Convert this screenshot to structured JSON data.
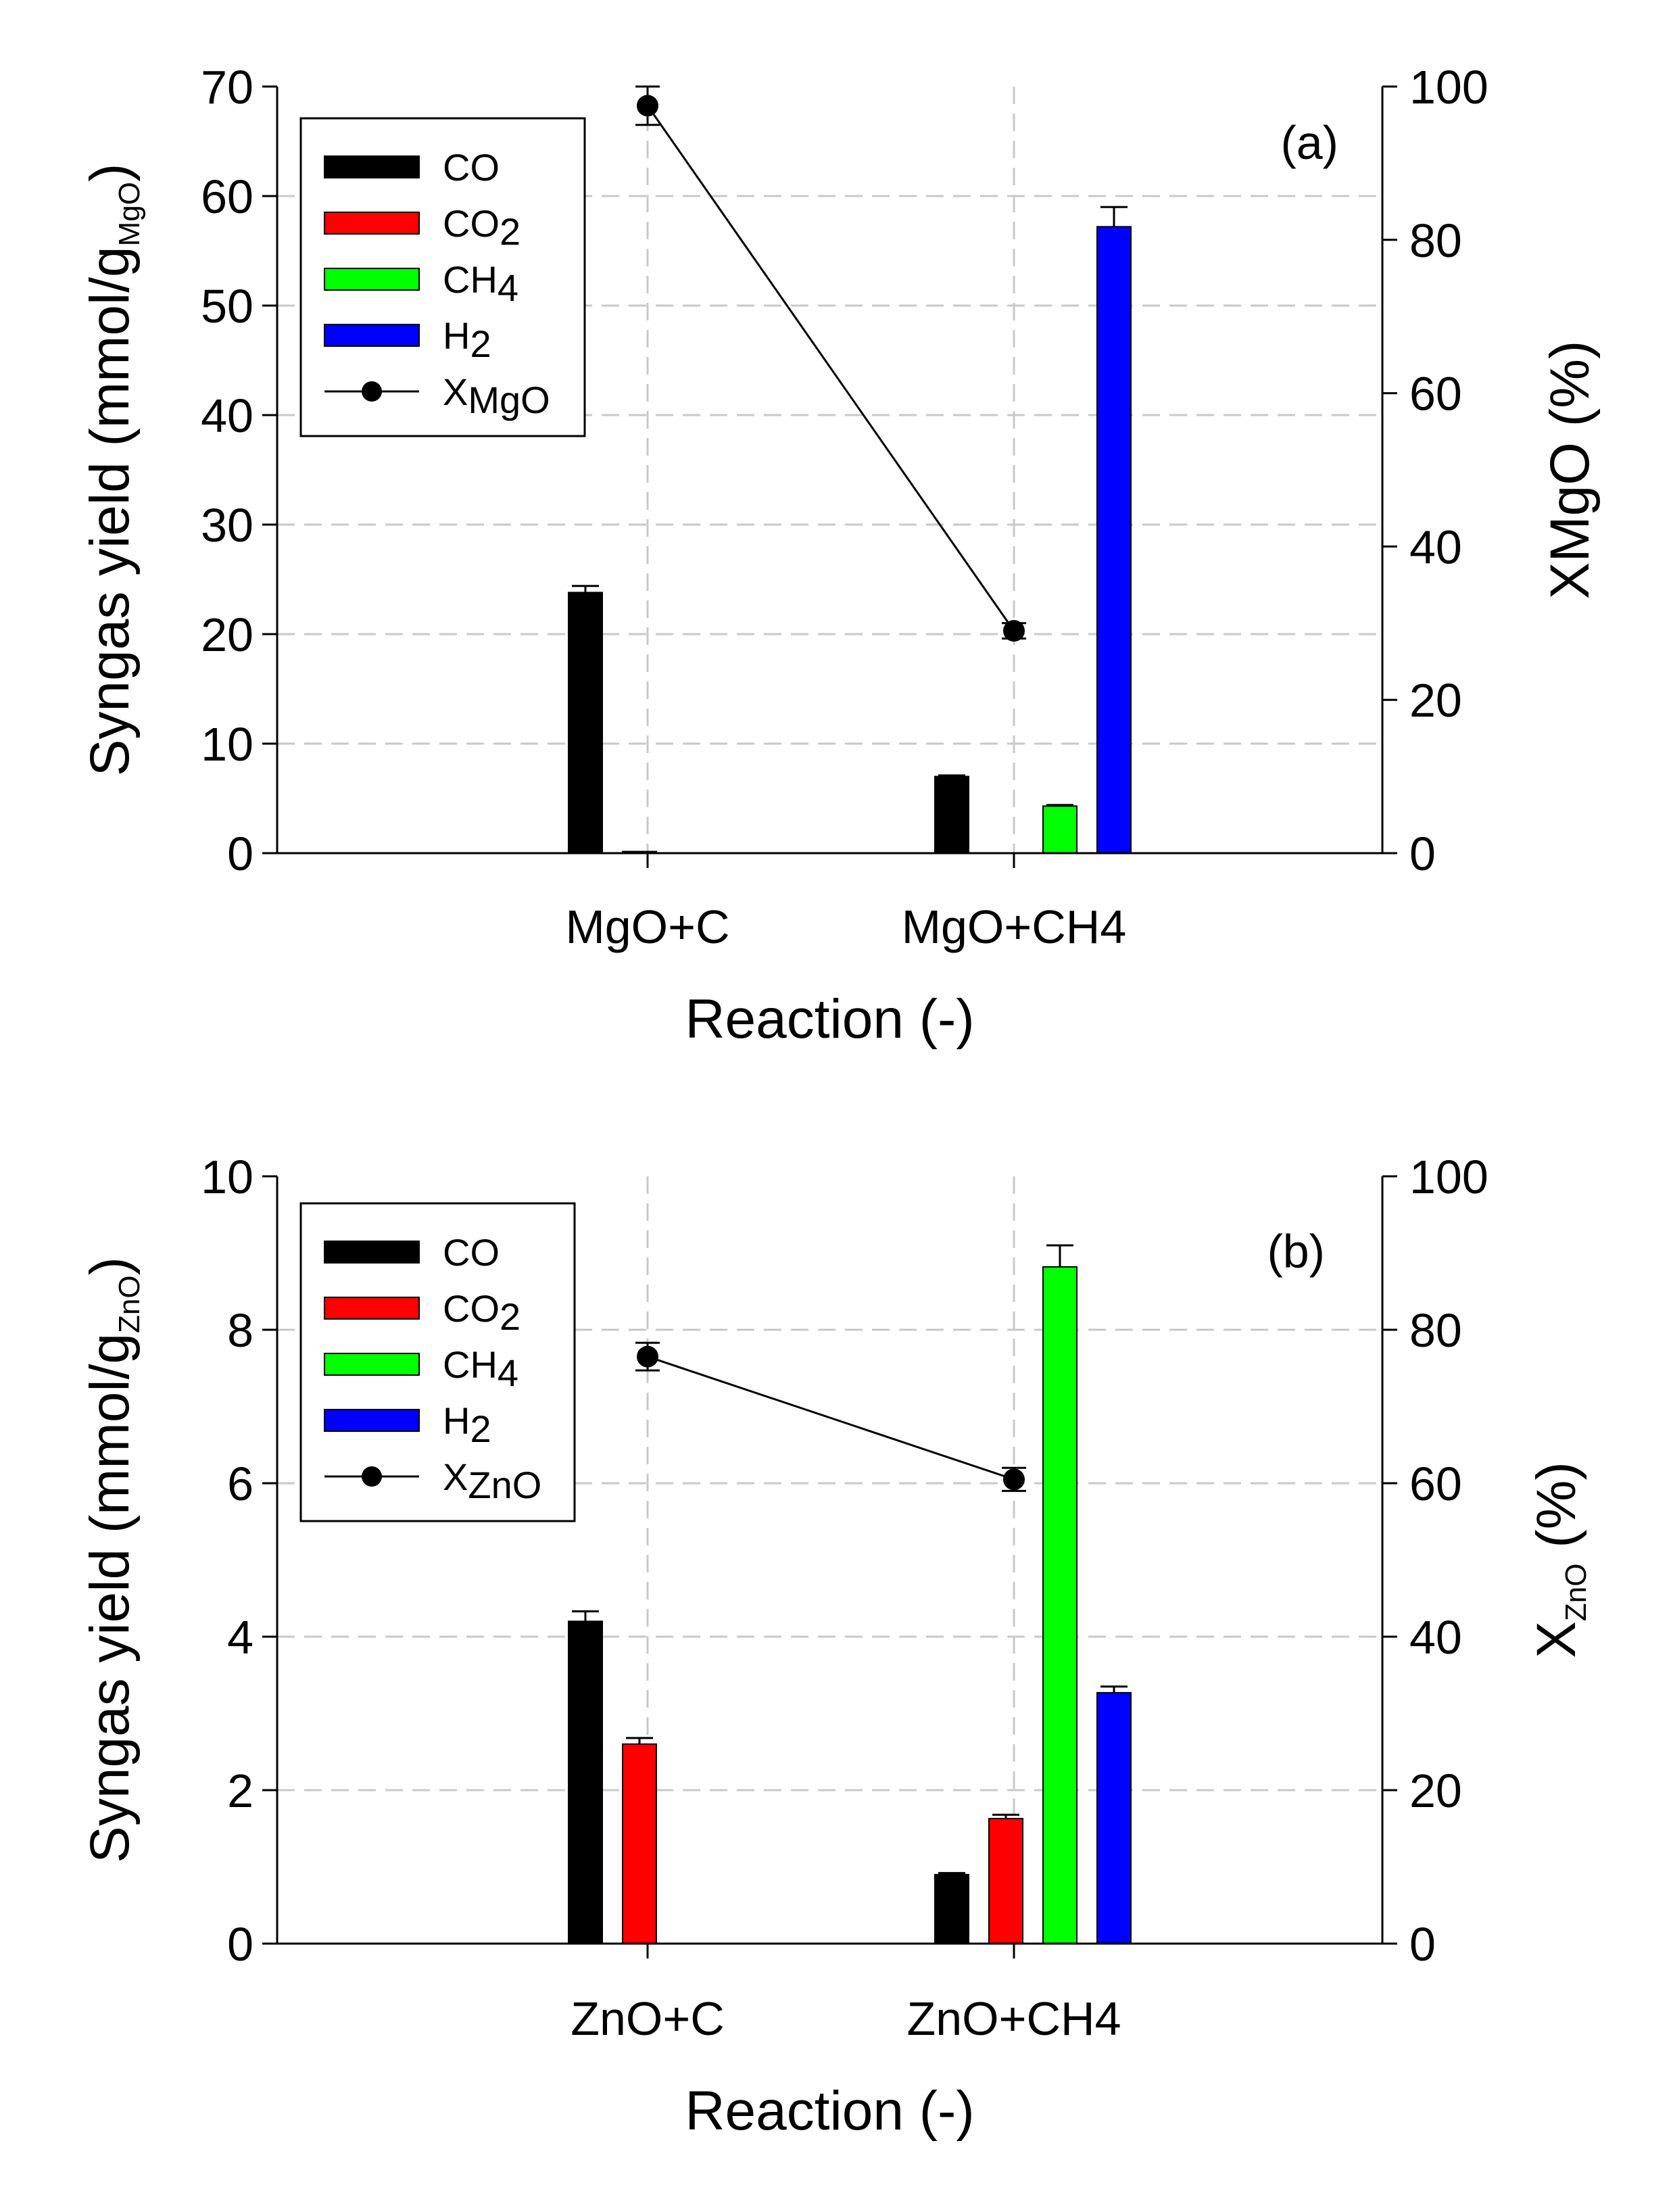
{
  "chart_data": [
    {
      "type": "bar",
      "panel_label": "(a)",
      "categories": [
        "MgO+C",
        "MgO+CH4"
      ],
      "series": [
        {
          "name": "CO",
          "values": [
            23.8,
            7.0
          ],
          "errors": [
            0.6,
            0.1
          ],
          "color": "#000000"
        },
        {
          "name": "CO2",
          "values": [
            0.15,
            0
          ],
          "errors": [
            0,
            0
          ],
          "color": "#ff0000"
        },
        {
          "name": "CH4",
          "values": [
            0,
            4.3
          ],
          "errors": [
            0,
            0.1
          ],
          "color": "#00ff00"
        },
        {
          "name": "H2",
          "values": [
            0,
            57.2
          ],
          "errors": [
            0,
            1.8
          ],
          "color": "#0000ff"
        }
      ],
      "line_series": {
        "name": "XMgO",
        "values": [
          97.5,
          29.0
        ],
        "errors": [
          2.5,
          1.0
        ],
        "axis": "right",
        "color": "#000000"
      },
      "legend_labels": [
        {
          "base": "CO",
          "sub": ""
        },
        {
          "base": "CO",
          "sub": "2"
        },
        {
          "base": "CH",
          "sub": "4"
        },
        {
          "base": "H",
          "sub": "2"
        },
        {
          "base": "X",
          "sub": "MgO"
        }
      ],
      "legend_position": "top-left",
      "xlabel": "Reaction (-)",
      "ylabel": {
        "text": "Syngas yield (mmol/g",
        "sub": "MgO",
        "close": ")"
      },
      "y2label": {
        "text": "XMgO (%)"
      },
      "ylim": [
        0,
        70
      ],
      "yticks": [
        "0",
        "10",
        "20",
        "30",
        "40",
        "50",
        "60",
        "70"
      ],
      "y2lim": [
        0,
        100
      ],
      "y2ticks": [
        "0",
        "20",
        "40",
        "60",
        "80",
        "100"
      ],
      "grid": true
    },
    {
      "type": "bar",
      "panel_label": "(b)",
      "categories": [
        "ZnO+C",
        "ZnO+CH4"
      ],
      "series": [
        {
          "name": "CO",
          "values": [
            4.2,
            0.9
          ],
          "errors": [
            0.13,
            0.02
          ],
          "color": "#000000"
        },
        {
          "name": "CO2",
          "values": [
            2.6,
            1.63
          ],
          "errors": [
            0.08,
            0.05
          ],
          "color": "#ff0000"
        },
        {
          "name": "CH4",
          "values": [
            0,
            8.82
          ],
          "errors": [
            0,
            0.28
          ],
          "color": "#00ff00"
        },
        {
          "name": "H2",
          "values": [
            0,
            3.27
          ],
          "errors": [
            0,
            0.08
          ],
          "color": "#0000ff"
        }
      ],
      "line_series": {
        "name": "XZnO",
        "values": [
          76.5,
          60.5
        ],
        "errors": [
          1.8,
          1.5
        ],
        "axis": "right",
        "color": "#000000"
      },
      "legend_labels": [
        {
          "base": "CO",
          "sub": ""
        },
        {
          "base": "CO",
          "sub": "2"
        },
        {
          "base": "CH",
          "sub": "4"
        },
        {
          "base": "H",
          "sub": "2"
        },
        {
          "base": "X",
          "sub": "ZnO"
        }
      ],
      "legend_position": "top-left",
      "xlabel": "Reaction (-)",
      "ylabel": {
        "text": "Syngas yield (mmol/g",
        "sub": "ZnO",
        "close": ")"
      },
      "y2label": {
        "text": "X",
        "sub": "ZnO",
        "close": " (%)"
      },
      "ylim": [
        0,
        10
      ],
      "yticks": [
        "0",
        "2",
        "4",
        "6",
        "8",
        "10"
      ],
      "y2lim": [
        0,
        100
      ],
      "y2ticks": [
        "0",
        "20",
        "40",
        "60",
        "80",
        "100"
      ],
      "grid": true
    }
  ]
}
